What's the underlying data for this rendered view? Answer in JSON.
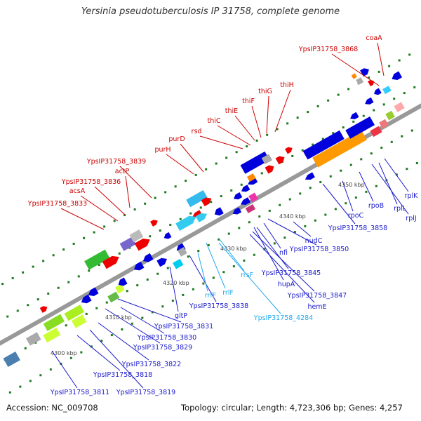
{
  "title": "Yersinia pseudotuberculosis IP 31758, complete genome",
  "footer": {
    "accession": "Accession: NC_009708",
    "summary": "Topology: circular; Length: 4,723,306 bp; Genes: 4,257"
  },
  "colors": {
    "backbone": "#999999",
    "tick": "#1e7a1e",
    "ruler_text": "#444444",
    "label_red": "#cc0000",
    "label_blue": "#1a1acc",
    "label_cyan": "#22aaee"
  },
  "ruler": [
    "4300 kbp",
    "4310 kbp",
    "4320 kbp",
    "4330 kbp",
    "4340 kbp",
    "4350 kbp"
  ],
  "labels_top": [
    "coaA",
    "YpsIP31758_3868",
    "thiH",
    "thiG",
    "thiF",
    "thiE",
    "thiC",
    "rsd",
    "purD",
    "purH",
    "YpsIP31758_3839",
    "actP",
    "YpsIP31758_3836",
    "acsA",
    "YpsIP31758_3833"
  ],
  "labels_bottom": [
    "rplK",
    "rplL",
    "rplJ",
    "rpoB",
    "rpoC",
    "YpsIP31758_3858",
    "nudC",
    "YpsIP31758_3850",
    "nfi",
    "YpsIP31758_3845",
    "hupA",
    "YpsIP31758_3847",
    "hemE",
    "rrsF",
    "YpsIP31758_4284",
    "rrlF",
    "YpsIP31758_3838",
    "rrfF",
    "gltP",
    "YpsIP31758_3831",
    "YpsIP31758_3830",
    "YpsIP31758_3829",
    "YpsIP31758_3822",
    "YpsIP31758_3818",
    "YpsIP31758_3819",
    "YpsIP31758_3811"
  ]
}
